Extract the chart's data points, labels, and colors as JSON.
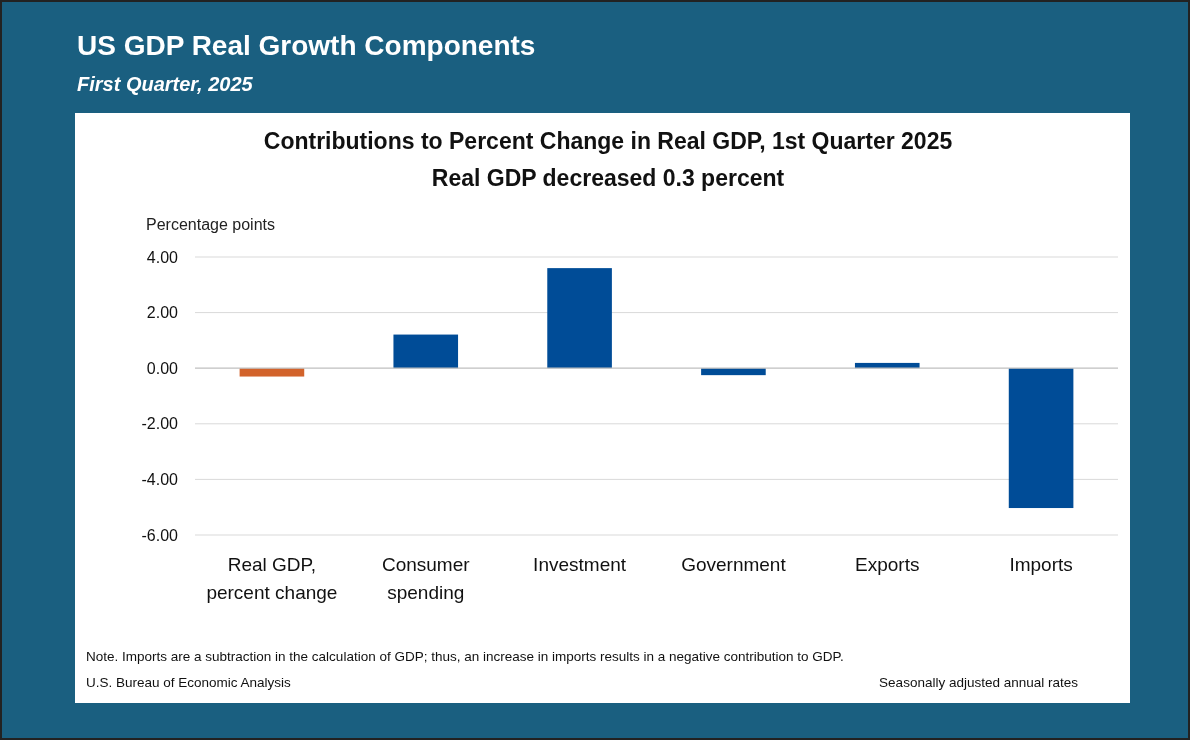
{
  "chart_data": {
    "type": "bar",
    "title": "US GDP Real Growth Components",
    "subtitle": "First Quarter, 2025",
    "annotations": [
      "Contributions to Percent Change in Real GDP, 1st Quarter 2025",
      "Real GDP decreased 0.3 percent",
      "Note. Imports are a subtraction in the calculation of GDP; thus, an increase in imports results in a negative contribution to GDP.",
      "U.S. Bureau of Economic Analysis",
      "Seasonally adjusted annual rates"
    ],
    "ylabel": "Percentage points",
    "categories": [
      "Real GDP, percent change",
      "Consumer spending",
      "Investment",
      "Government",
      "Exports",
      "Imports"
    ],
    "values": [
      -0.3,
      1.21,
      3.6,
      -0.25,
      0.19,
      -5.03
    ],
    "colors": [
      "#d2632b",
      "#004c97",
      "#004c97",
      "#004c97",
      "#004c97",
      "#004c97"
    ],
    "ylim": [
      -6,
      4
    ],
    "yticks": [
      {
        "value": -6,
        "label": "-6.00"
      },
      {
        "value": -4,
        "label": "-4.00"
      },
      {
        "value": -2,
        "label": "-2.00"
      },
      {
        "value": 0,
        "label": "0.00"
      },
      {
        "value": 2,
        "label": "2.00"
      },
      {
        "value": 4,
        "label": "4.00"
      }
    ],
    "grid": "y"
  }
}
